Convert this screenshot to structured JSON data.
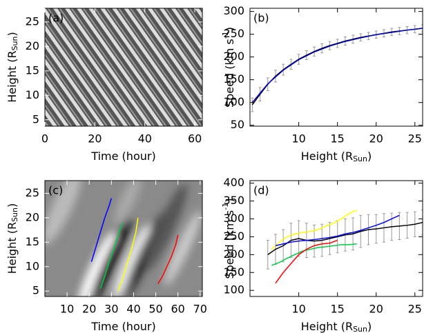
{
  "chart_data": [
    {
      "type": "image",
      "panel_label": "(a)",
      "x_label": [
        "Time (hour)"
      ],
      "y_label": [
        "Height (R",
        "Sun",
        ")"
      ],
      "xlim": [
        0,
        63
      ],
      "xticks": [
        0,
        20,
        40,
        60
      ],
      "ylim": [
        3.7,
        27.8
      ],
      "yticks": [
        5,
        10,
        15,
        20,
        25
      ],
      "series": []
    },
    {
      "type": "line",
      "panel_label": "(b)",
      "x_label": [
        "Height (R",
        "Sun",
        ")"
      ],
      "y_label": [
        "Speed (km s",
        "-1",
        ")"
      ],
      "xlim": [
        3.7,
        26.0
      ],
      "xticks": [
        10,
        15,
        20,
        25
      ],
      "ylim": [
        48,
        307
      ],
      "yticks": [
        50,
        100,
        150,
        200,
        250,
        300
      ],
      "series": [
        {
          "color": "#000000",
          "x": [
            4,
            5,
            6,
            7,
            8,
            9,
            10,
            11,
            12,
            13,
            14,
            15,
            16,
            17,
            18,
            19,
            20,
            21,
            22,
            23,
            24,
            25,
            26
          ],
          "values": [
            95,
            118,
            140,
            158,
            172,
            184,
            195,
            204,
            212,
            219,
            225,
            230,
            235,
            239,
            243,
            246,
            249,
            252,
            255,
            257,
            259,
            261,
            263
          ],
          "errors": [
            15,
            15,
            14,
            13,
            12,
            11,
            11,
            10,
            10,
            10,
            9,
            9,
            9,
            9,
            8,
            8,
            8,
            8,
            8,
            8,
            8,
            8,
            8
          ]
        },
        {
          "color": "#0000cc",
          "x": [
            4,
            6,
            8,
            10,
            12,
            14,
            16,
            18,
            20,
            22,
            24,
            26
          ],
          "values": [
            100,
            141,
            171,
            194,
            211,
            224,
            234,
            242,
            249,
            254,
            259,
            263
          ]
        }
      ]
    },
    {
      "type": "image",
      "panel_label": "(c)",
      "x_label": [
        "Time (hour)"
      ],
      "y_label": [
        "Height (R",
        "Sun",
        ")"
      ],
      "xlim": [
        0,
        71
      ],
      "xticks": [
        10,
        20,
        30,
        40,
        50,
        60,
        70
      ],
      "ylim": [
        3.9,
        27.6
      ],
      "yticks": [
        5,
        10,
        15,
        20,
        25
      ],
      "series": [
        {
          "color": "#0000ff",
          "x": [
            21,
            23,
            25,
            27,
            29,
            30
          ],
          "values": [
            11,
            14,
            17,
            20,
            22.5,
            24
          ]
        },
        {
          "color": "#00cc44",
          "x": [
            25,
            27,
            29,
            31,
            33,
            35
          ],
          "values": [
            5.5,
            8,
            11,
            13.5,
            16.5,
            19
          ]
        },
        {
          "color": "#ffff00",
          "x": [
            33,
            35,
            37,
            39,
            41,
            42
          ],
          "values": [
            5,
            7.5,
            10.5,
            13.5,
            17,
            20
          ]
        },
        {
          "color": "#ff0000",
          "x": [
            51,
            53,
            55,
            57,
            59,
            60
          ],
          "values": [
            6.5,
            8,
            10,
            12,
            14.5,
            16.5
          ]
        }
      ]
    },
    {
      "type": "line",
      "panel_label": "(d)",
      "x_label": [
        "Height (R",
        "Sun",
        ")"
      ],
      "y_label": [
        "Speed (km s",
        "-1",
        ")"
      ],
      "xlim": [
        3.7,
        26.0
      ],
      "xticks": [
        10,
        15,
        20,
        25
      ],
      "ylim": [
        83,
        407
      ],
      "yticks": [
        100,
        150,
        200,
        250,
        300,
        350,
        400
      ],
      "series": [
        {
          "color": "#000000",
          "x": [
            6,
            7,
            8,
            9,
            10,
            11,
            12,
            13,
            14,
            15,
            16,
            17,
            18,
            19,
            20,
            21,
            22,
            23,
            24,
            25,
            26
          ],
          "values": [
            200,
            215,
            225,
            240,
            245,
            240,
            238,
            240,
            245,
            250,
            255,
            258,
            265,
            270,
            272,
            275,
            278,
            280,
            282,
            285,
            290
          ],
          "errors": [
            40,
            42,
            45,
            48,
            50,
            48,
            45,
            45,
            45,
            45,
            45,
            45,
            45,
            42,
            40,
            40,
            38,
            38,
            36,
            35,
            35
          ]
        },
        {
          "color": "#ffff00",
          "x": [
            6.5,
            7.5,
            8.5,
            9.5,
            10.5,
            11.5,
            12.5,
            13.5,
            14.5,
            15.5,
            16.5,
            17.5
          ],
          "values": [
            215,
            235,
            250,
            258,
            262,
            265,
            270,
            280,
            288,
            300,
            315,
            325
          ]
        },
        {
          "color": "#0000ff",
          "x": [
            7,
            8,
            9,
            10,
            11,
            12,
            13,
            14,
            15,
            16,
            17,
            18,
            19,
            20,
            21,
            22,
            23
          ],
          "values": [
            225,
            230,
            235,
            238,
            240,
            242,
            245,
            248,
            252,
            258,
            262,
            268,
            275,
            282,
            290,
            300,
            310
          ]
        },
        {
          "color": "#00cc44",
          "x": [
            6.5,
            7.5,
            8.5,
            9.5,
            10.5,
            11.5,
            12.5,
            13.5,
            14.5,
            15.5,
            16.5,
            17.5
          ],
          "values": [
            170,
            178,
            190,
            200,
            210,
            215,
            220,
            222,
            225,
            228,
            228,
            230
          ]
        },
        {
          "color": "#ff0000",
          "x": [
            7,
            8,
            9,
            10,
            11,
            12,
            13,
            14,
            15
          ],
          "values": [
            120,
            150,
            175,
            200,
            215,
            225,
            230,
            232,
            240
          ]
        }
      ]
    }
  ]
}
